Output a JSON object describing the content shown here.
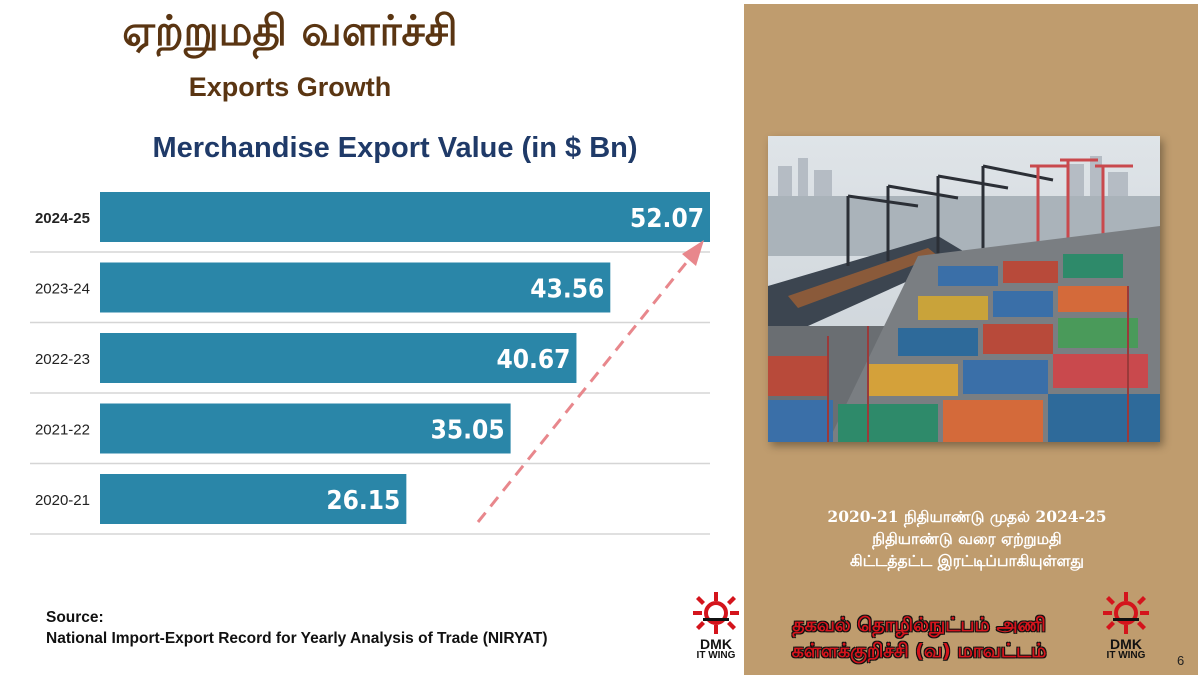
{
  "header": {
    "title_tamil": "ஏற்றுமதி வளர்ச்சி",
    "title_english": "Exports Growth"
  },
  "chart_data": {
    "type": "bar",
    "orientation": "horizontal",
    "title": "Merchandise Export Value (in $ Bn)",
    "categories": [
      "2024-25",
      "2023-24",
      "2022-23",
      "2021-22",
      "2020-21"
    ],
    "values": [
      52.07,
      43.56,
      40.67,
      35.05,
      26.15
    ],
    "xlim": [
      0,
      52.07
    ],
    "grid": false,
    "bar_color": "#2a86a8",
    "label_color": "#ffffff",
    "trend_arrow_color": "#e8878c",
    "highlighted_category": "2024-25"
  },
  "source": {
    "label": "Source:",
    "text": "National Import-Export Record for Yearly Analysis of Trade (NIRYAT)"
  },
  "panel": {
    "background": "#bf9c6e",
    "caption_lines": [
      "2020-21 நிதியாண்டு முதல் 2024-25",
      "நிதியாண்டு வரை ஏற்றுமதி",
      "கிட்டத்தட்ட இரட்டிப்பாகியுள்ளது"
    ]
  },
  "branding": {
    "logo_text": "DMK",
    "logo_subtext": "IT WING",
    "wing_line1": "தகவல் தொழில்நுட்பம் அணி",
    "wing_line2": "கள்ளக்குறிச்சி (வ) மாவட்டம்",
    "logo_color": "#d4141c"
  },
  "page_number": "6"
}
